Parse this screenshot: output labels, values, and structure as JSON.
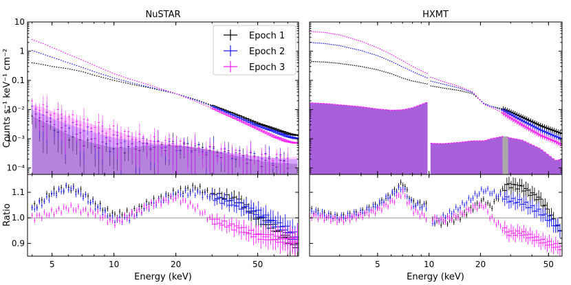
{
  "chart_data": {
    "type": "scatter",
    "series": [
      {
        "name": "Epoch 1",
        "color": "#000000"
      },
      {
        "name": "Epoch 2",
        "color": "#1a1aff"
      },
      {
        "name": "Epoch 3",
        "color": "#ff1aff"
      }
    ],
    "shared": {
      "xlabel": "Energy (keV)",
      "ylabel_top": "Counts s⁻¹ keV⁻¹ cm⁻²",
      "ylabel_bottom": "Ratio",
      "top_ylim": [
        6e-05,
        10
      ],
      "bottom_ylim": [
        0.85,
        1.17
      ],
      "top_yticks": [
        "10",
        "1",
        "0.1",
        "10⁻²",
        "10⁻³",
        "10⁻⁴"
      ],
      "top_ytick_values": [
        10,
        1,
        0.1,
        0.01,
        0.001,
        0.0001
      ],
      "bottom_yticks": [
        "1.1",
        "1.0",
        "0.9"
      ],
      "bottom_ytick_values": [
        1.1,
        1.0,
        0.9
      ],
      "ratio_reference": 1.0
    },
    "panels": [
      {
        "title": "NuSTAR",
        "xlim": [
          3.8,
          79
        ],
        "xticks": [
          "5",
          "10",
          "20",
          "50"
        ],
        "xtick_values": [
          5,
          10,
          20,
          50
        ],
        "energies": [
          4,
          4.5,
          5,
          6,
          7,
          8,
          10,
          12,
          15,
          20,
          25,
          30,
          40,
          50,
          60,
          70,
          78
        ],
        "spectra": [
          [
            0.4,
            0.35,
            0.3,
            0.25,
            0.2,
            0.15,
            0.1,
            0.075,
            0.055,
            0.035,
            0.022,
            0.014,
            0.0065,
            0.0034,
            0.0022,
            0.0015,
            0.0013
          ],
          [
            1.05,
            0.8,
            0.62,
            0.4,
            0.28,
            0.2,
            0.12,
            0.085,
            0.058,
            0.035,
            0.021,
            0.013,
            0.0055,
            0.0028,
            0.0018,
            0.0012,
            0.001
          ],
          [
            2.5,
            1.85,
            1.35,
            0.78,
            0.5,
            0.33,
            0.17,
            0.11,
            0.068,
            0.035,
            0.019,
            0.011,
            0.0045,
            0.0022,
            0.0012,
            0.0008,
            0.0007
          ]
        ],
        "backgrounds": [
          [
            0.006,
            0.004,
            0.0028,
            0.0014,
            0.0009,
            0.0007,
            0.0005,
            0.0005,
            0.0006,
            0.0006,
            0.0005,
            0.0004,
            0.00025,
            0.00018,
            0.00015,
            0.00014,
            0.00014
          ],
          [
            0.01,
            0.007,
            0.005,
            0.0032,
            0.0022,
            0.0016,
            0.0011,
            0.0009,
            0.0007,
            0.0006,
            0.0005,
            0.0004,
            0.0003,
            0.00025,
            0.00022,
            0.0002,
            0.0002
          ],
          [
            0.015,
            0.012,
            0.009,
            0.0055,
            0.004,
            0.003,
            0.002,
            0.0013,
            0.0009,
            0.0007,
            0.0005,
            0.0004,
            0.0003,
            0.00025,
            0.00022,
            0.00022,
            0.00025
          ]
        ],
        "ratios": [
          [
            1.04,
            1.07,
            1.1,
            1.12,
            1.1,
            1.06,
            1.01,
            1.02,
            1.06,
            1.1,
            1.12,
            1.09,
            1.07,
            1.0,
            0.96,
            0.92,
            0.89
          ],
          [
            1.03,
            1.06,
            1.09,
            1.12,
            1.09,
            1.05,
            0.99,
            1.0,
            1.05,
            1.09,
            1.1,
            1.08,
            1.05,
            1.02,
            0.98,
            0.95,
            0.92
          ],
          [
            1.0,
            1.01,
            1.02,
            1.04,
            1.03,
            1.02,
            0.98,
            1.01,
            1.05,
            1.08,
            1.04,
            0.99,
            0.96,
            0.93,
            0.92,
            0.91,
            0.91
          ]
        ]
      },
      {
        "title": "HXMT",
        "xlim": [
          2,
          60
        ],
        "xticks": [
          "5",
          "10",
          "20",
          "50"
        ],
        "xtick_values": [
          5,
          10,
          20,
          50
        ],
        "energies": [
          2,
          2.5,
          3,
          4,
          5,
          6,
          7,
          8,
          9.8,
          10.2,
          12,
          15,
          18,
          21,
          23,
          27,
          29,
          35,
          45,
          55,
          60
        ],
        "spectra": [
          [
            0.45,
            0.42,
            0.38,
            0.3,
            0.23,
            0.17,
            0.12,
            0.095,
            0.075,
            0.065,
            0.055,
            0.045,
            0.035,
            0.016,
            0.013,
            0.0105,
            0.009,
            0.0055,
            0.0028,
            0.0018,
            0.0015
          ],
          [
            2.0,
            1.8,
            1.55,
            1.05,
            0.7,
            0.45,
            0.29,
            0.2,
            0.12,
            0.095,
            0.075,
            0.055,
            0.038,
            0.016,
            0.013,
            0.0095,
            0.0075,
            0.0042,
            0.002,
            0.0012,
            0.001
          ],
          [
            4.8,
            4.3,
            3.6,
            2.2,
            1.3,
            0.78,
            0.47,
            0.3,
            0.17,
            0.13,
            0.092,
            0.062,
            0.04,
            0.015,
            0.012,
            0.0078,
            0.0058,
            0.003,
            0.0013,
            0.0008,
            0.0006
          ]
        ],
        "background": [
          0.017,
          0.016,
          0.0145,
          0.0125,
          0.0105,
          0.0095,
          0.0098,
          0.0115,
          0.018,
          0.0007,
          0.00068,
          0.00075,
          0.00085,
          0.00085,
          0.001,
          0.0012,
          0.0011,
          0.0009,
          0.00045,
          0.00018,
          0.0002
        ],
        "ratios": [
          [
            1.03,
            1.01,
            1.0,
            1.02,
            1.05,
            1.09,
            1.14,
            1.06,
            1.05,
            0.99,
            0.98,
            1.0,
            1.04,
            1.07,
            1.04,
            1.11,
            1.13,
            1.12,
            1.07,
            0.98,
            0.93
          ],
          [
            1.03,
            1.01,
            1.0,
            1.02,
            1.05,
            1.09,
            1.12,
            1.05,
            1.04,
            0.98,
            1.0,
            1.04,
            1.08,
            1.11,
            1.1,
            1.08,
            1.07,
            1.06,
            1.02,
            0.97,
            0.95
          ],
          [
            1.01,
            1.0,
            0.99,
            1.01,
            1.03,
            1.06,
            1.1,
            1.03,
            1.0,
            1.0,
            0.99,
            1.01,
            1.04,
            1.05,
            1.0,
            0.96,
            0.94,
            0.94,
            0.91,
            0.89,
            0.88
          ]
        ]
      }
    ]
  }
}
